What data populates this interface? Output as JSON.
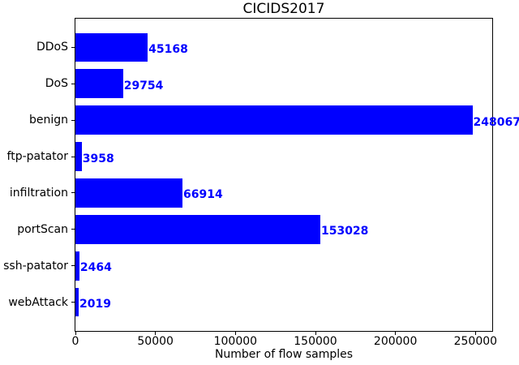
{
  "chart_data": {
    "type": "bar",
    "orientation": "horizontal",
    "title": "CICIDS2017",
    "xlabel": "Number of flow samples",
    "categories": [
      "DDoS",
      "DoS",
      "benign",
      "ftp-patator",
      "infiltration",
      "portScan",
      "ssh-patator",
      "webAttack"
    ],
    "values": [
      45168,
      29754,
      248067,
      3958,
      66914,
      153028,
      2464,
      2019
    ],
    "value_labels": [
      "45168",
      "29754",
      "248067",
      "3958",
      "66914",
      "153028",
      "2464",
      "2019"
    ],
    "xticks": [
      0,
      50000,
      100000,
      150000,
      200000,
      250000
    ],
    "xtick_labels": [
      "0",
      "50000",
      "100000",
      "150000",
      "200000",
      "250000"
    ],
    "xlim": [
      0,
      260470
    ],
    "bar_color": "#0000ff",
    "value_label_color": "#0000ff",
    "axis_color": "#000000",
    "background_color": "#ffffff",
    "grid": false,
    "legend": false
  }
}
